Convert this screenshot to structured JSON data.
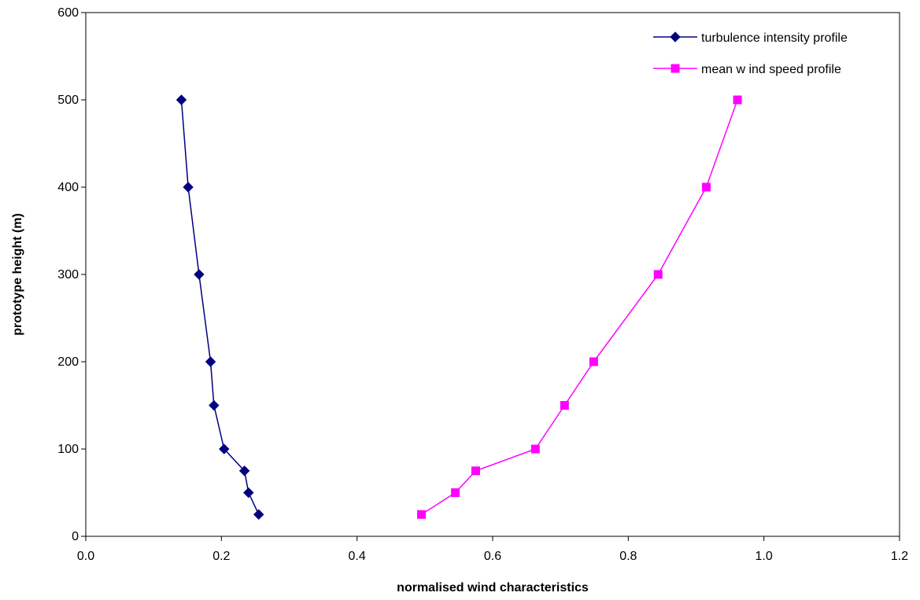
{
  "chart_data": {
    "type": "line",
    "title": "",
    "xlabel": "normalised wind characteristics",
    "ylabel": "prototype height (m)",
    "xlim": [
      0,
      1.2
    ],
    "ylim": [
      0,
      600
    ],
    "xticks": [
      "0.0",
      "0.2",
      "0.4",
      "0.6",
      "0.8",
      "1.0",
      "1.2"
    ],
    "yticks": [
      "0",
      "100",
      "200",
      "300",
      "400",
      "500",
      "600"
    ],
    "grid": false,
    "legend_position": "top-right",
    "series": [
      {
        "name": "turbulence intensity profile",
        "color": "#000080",
        "marker": "diamond",
        "points": [
          [
            0.141,
            500
          ],
          [
            0.151,
            400
          ],
          [
            0.167,
            300
          ],
          [
            0.184,
            200
          ],
          [
            0.189,
            150
          ],
          [
            0.204,
            100
          ],
          [
            0.234,
            75
          ],
          [
            0.24,
            50
          ],
          [
            0.255,
            25
          ]
        ]
      },
      {
        "name": "mean w ind speed profile",
        "color": "#FF00FF",
        "marker": "square",
        "points": [
          [
            0.495,
            25
          ],
          [
            0.545,
            50
          ],
          [
            0.575,
            75
          ],
          [
            0.663,
            100
          ],
          [
            0.706,
            150
          ],
          [
            0.749,
            200
          ],
          [
            0.844,
            300
          ],
          [
            0.915,
            400
          ],
          [
            0.961,
            500
          ]
        ]
      }
    ]
  }
}
